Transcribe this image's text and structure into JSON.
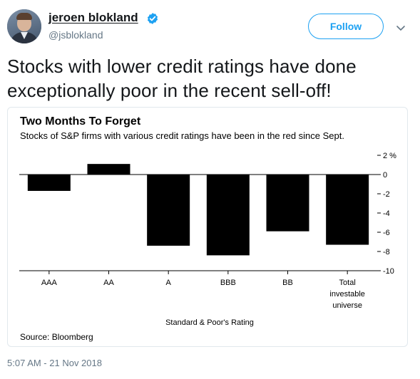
{
  "user": {
    "display_name": "jeroen blokland",
    "handle": "@jsblokland",
    "verified": true,
    "avatar_icon": "profile-photo"
  },
  "follow_button": {
    "label": "Follow",
    "color": "#1da1f2"
  },
  "tweet": {
    "text": "Stocks with lower credit ratings have done exceptionally poor in the recent sell-off!",
    "timestamp": "5:07 AM - 21 Nov 2018"
  },
  "chart_data": {
    "type": "bar",
    "title": "Two Months To Forget",
    "subtitle": "Stocks of S&P firms with various credit ratings have been in the red since Sept.",
    "categories": [
      "AAA",
      "AA",
      "A",
      "BBB",
      "BB",
      "Total investable universe"
    ],
    "values": [
      -1.7,
      1.1,
      -7.4,
      -8.4,
      -5.9,
      -7.3
    ],
    "xlabel": "Standard & Poor's Rating",
    "ylabel": "",
    "ylim": [
      -10,
      2
    ],
    "yticks": [
      2,
      0,
      -2,
      -4,
      -6,
      -8,
      -10
    ],
    "ytick_labels": [
      "2 %",
      "0",
      "-2",
      "-4",
      "-6",
      "-8",
      "-10"
    ],
    "y_axis_side": "right",
    "grid": false,
    "bar_color": "#000000",
    "source": "Source: Bloomberg"
  }
}
